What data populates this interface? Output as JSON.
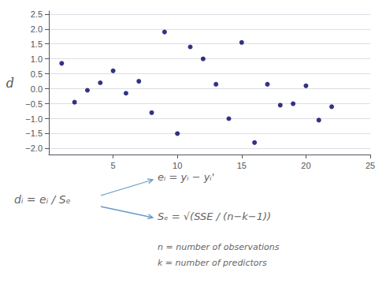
{
  "chart_data": {
    "type": "scatter",
    "ylabel": "d",
    "x": [
      1,
      2,
      3,
      4,
      5,
      6,
      7,
      8,
      9,
      10,
      11,
      12,
      13,
      14,
      15,
      16,
      17,
      18,
      19,
      20,
      21,
      22
    ],
    "values": [
      0.85,
      -0.45,
      -0.05,
      0.2,
      0.6,
      -0.15,
      0.25,
      -0.8,
      1.9,
      -1.5,
      1.4,
      1.0,
      0.15,
      -1.0,
      1.55,
      -1.8,
      0.15,
      -0.55,
      -0.5,
      0.1,
      -1.05,
      -0.6
    ],
    "color": "#000066",
    "xlim": [
      0,
      25
    ],
    "xticks": [
      5,
      10,
      15,
      20,
      25
    ],
    "ylim": [
      -2.2,
      2.6
    ],
    "yticks": [
      {
        "value": -2,
        "label": "−2.0"
      },
      {
        "value": -1.5,
        "label": "−1.5"
      },
      {
        "value": -1,
        "label": "−1.0"
      },
      {
        "value": -0.5,
        "label": "−0.5"
      },
      {
        "value": 0,
        "label": "0.0"
      },
      {
        "value": 0.5,
        "label": "0.5"
      },
      {
        "value": 1,
        "label": "1.0"
      },
      {
        "value": 1.5,
        "label": "1.5"
      },
      {
        "value": 2,
        "label": "2.0"
      },
      {
        "value": 2.5,
        "label": "2.5"
      }
    ],
    "grid": "y",
    "annotations": [
      "dᵢ = eᵢ / Sₑ",
      "eᵢ = yᵢ − yᵢ'",
      "Sₑ = √(SSE / (n−k−1))",
      "n = number of observations",
      "k = number of predictors"
    ]
  }
}
